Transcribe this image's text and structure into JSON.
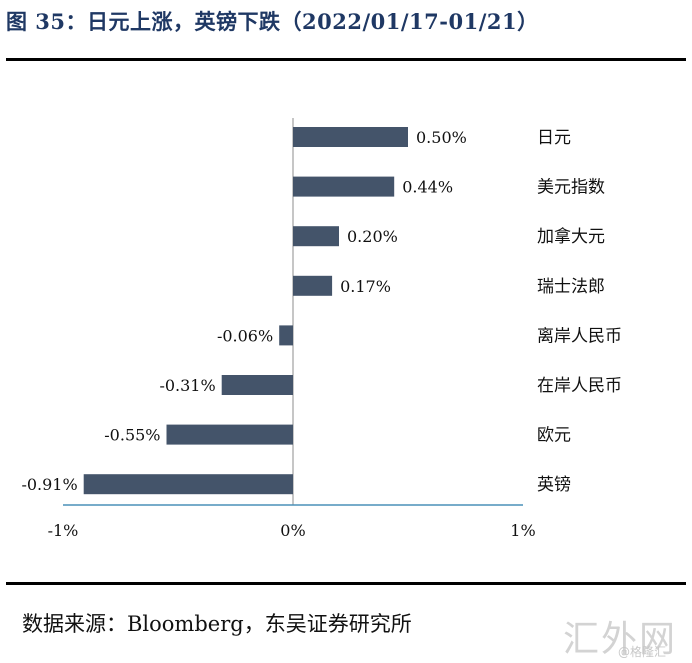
{
  "header": {
    "title": "图 35：日元上涨，英镑下跌（2022/01/17-01/21）"
  },
  "footer": {
    "source": "数据来源：Bloomberg，东吴证券研究所",
    "watermark": "汇外网",
    "watermark_sub": "@格隆汇"
  },
  "chart_data": {
    "type": "bar",
    "orientation": "horizontal",
    "title": "日元上涨，英镑下跌（2022/01/17-01/21）",
    "xlabel": "",
    "ylabel": "",
    "categories": [
      "日元",
      "美元指数",
      "加拿大元",
      "瑞士法郎",
      "离岸人民币",
      "在岸人民币",
      "欧元",
      "英镑"
    ],
    "values": [
      0.5,
      0.44,
      0.2,
      0.17,
      -0.06,
      -0.31,
      -0.55,
      -0.91
    ],
    "value_labels": [
      "0.50%",
      "0.44%",
      "0.20%",
      "0.17%",
      "-0.06%",
      "-0.31%",
      "-0.55%",
      "-0.91%"
    ],
    "xlim": [
      -1,
      1
    ],
    "xticks": [
      -1,
      0,
      1
    ],
    "xtick_labels": [
      "-1%",
      "0%",
      "1%"
    ],
    "grid": false,
    "legend": "none",
    "colors": {
      "bar": "#44546a",
      "axis": "#4a90b8",
      "zero_line": "#8c8c8c"
    }
  }
}
